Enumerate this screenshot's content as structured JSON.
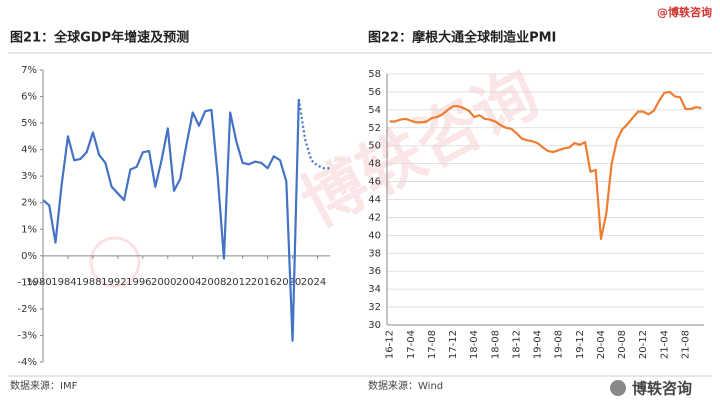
{
  "brand": "@博轶咨询",
  "watermark": "博轶咨询",
  "logo": "博轶咨询",
  "chart_data": [
    {
      "type": "line",
      "title": "图21：全球GDP年增速及预测",
      "source": "数据来源：IMF",
      "x": [
        1980,
        1981,
        1982,
        1983,
        1984,
        1985,
        1986,
        1987,
        1988,
        1989,
        1990,
        1991,
        1992,
        1993,
        1994,
        1995,
        1996,
        1997,
        1998,
        1999,
        2000,
        2001,
        2002,
        2003,
        2004,
        2005,
        2006,
        2007,
        2008,
        2009,
        2010,
        2011,
        2012,
        2013,
        2014,
        2015,
        2016,
        2017,
        2018,
        2019,
        2020,
        2021,
        2022,
        2023,
        2024,
        2025,
        2026
      ],
      "series": [
        {
          "color": "#4472c4",
          "style": "solid",
          "values": [
            2.1,
            1.9,
            0.5,
            2.7,
            4.5,
            3.6,
            3.65,
            3.9,
            4.65,
            3.8,
            3.5,
            2.6,
            2.35,
            2.1,
            3.25,
            3.35,
            3.9,
            3.95,
            2.6,
            3.6,
            4.8,
            2.45,
            2.9,
            4.2,
            5.4,
            4.9,
            5.45,
            5.5,
            3.0,
            -0.1,
            5.4,
            4.3,
            3.5,
            3.45,
            3.55,
            3.5,
            3.3,
            3.75,
            3.6,
            2.8,
            -3.2,
            5.9,
            null,
            null,
            null,
            null,
            null
          ]
        },
        {
          "color": "#4472c4",
          "style": "dotted",
          "values": [
            null,
            null,
            null,
            null,
            null,
            null,
            null,
            null,
            null,
            null,
            null,
            null,
            null,
            null,
            null,
            null,
            null,
            null,
            null,
            null,
            null,
            null,
            null,
            null,
            null,
            null,
            null,
            null,
            null,
            null,
            null,
            null,
            null,
            null,
            null,
            null,
            null,
            null,
            null,
            null,
            null,
            5.9,
            4.4,
            3.6,
            3.4,
            3.3,
            3.3
          ]
        }
      ],
      "xlim": [
        1980,
        2026
      ],
      "xticks": [
        1980,
        1984,
        1988,
        1992,
        1996,
        2000,
        2004,
        2008,
        2012,
        2016,
        2020,
        2024
      ],
      "ylim": [
        -4,
        7
      ],
      "yticks": [
        {
          "value": -4,
          "label": "-4%"
        },
        {
          "value": -3,
          "label": "-3%"
        },
        {
          "value": -2,
          "label": "-2%"
        },
        {
          "value": -1,
          "label": "-1%"
        },
        {
          "value": 0,
          "label": "0%"
        },
        {
          "value": 1,
          "label": "1%"
        },
        {
          "value": 2,
          "label": "2%"
        },
        {
          "value": 3,
          "label": "3%"
        },
        {
          "value": 4,
          "label": "4%"
        },
        {
          "value": 5,
          "label": "5%"
        },
        {
          "value": 6,
          "label": "6%"
        },
        {
          "value": 7,
          "label": "7%"
        }
      ],
      "grid": false
    },
    {
      "type": "line",
      "title": "图22：摩根大通全球制造业PMI",
      "source": "数据来源：Wind",
      "categories": [
        "16-12",
        null,
        null,
        null,
        "17-04",
        null,
        null,
        null,
        "17-08",
        null,
        null,
        null,
        "17-12",
        null,
        null,
        null,
        "18-04",
        null,
        null,
        null,
        "18-08",
        null,
        null,
        null,
        "18-12",
        null,
        null,
        null,
        "19-04",
        null,
        null,
        null,
        "19-08",
        null,
        null,
        null,
        "19-12",
        null,
        null,
        null,
        "20-04",
        null,
        null,
        null,
        "20-08",
        null,
        null,
        null,
        "20-12",
        null,
        null,
        null,
        "21-04",
        null,
        null,
        null,
        "21-08",
        null,
        null,
        null
      ],
      "series": [
        {
          "color": "#ed7d31",
          "style": "solid",
          "values": [
            52.7,
            52.7,
            52.9,
            53.0,
            52.8,
            52.6,
            52.6,
            52.7,
            53.1,
            53.2,
            53.5,
            54.0,
            54.4,
            54.4,
            54.2,
            53.9,
            53.2,
            53.4,
            53.0,
            52.9,
            52.7,
            52.3,
            52.0,
            51.9,
            51.4,
            50.8,
            50.6,
            50.5,
            50.3,
            49.8,
            49.4,
            49.3,
            49.5,
            49.7,
            49.8,
            50.3,
            50.1,
            50.4,
            47.1,
            47.3,
            39.6,
            42.4,
            47.9,
            50.6,
            51.8,
            52.4,
            53.1,
            53.8,
            53.8,
            53.5,
            53.9,
            55.0,
            55.9,
            56.0,
            55.5,
            55.4,
            54.1,
            54.1,
            54.3,
            54.2
          ]
        }
      ],
      "ylim": [
        30,
        58
      ],
      "yticks": [
        30,
        32,
        34,
        36,
        38,
        40,
        42,
        44,
        46,
        48,
        50,
        52,
        54,
        56,
        58
      ],
      "grid": true
    }
  ]
}
